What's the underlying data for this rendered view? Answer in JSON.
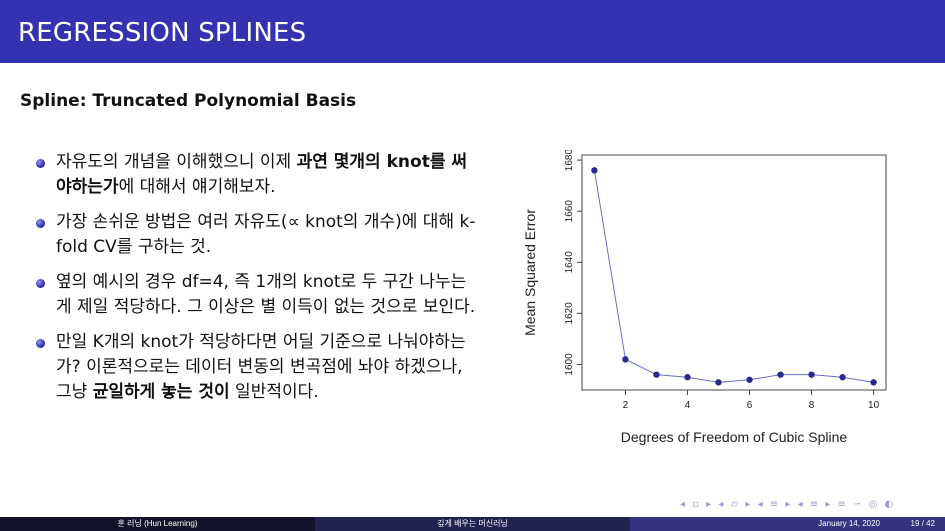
{
  "header": {
    "title": "REGRESSION SPLINES"
  },
  "subtitle": "Spline: Truncated Polynomial Basis",
  "bullets": [
    {
      "pre": "자유도의 개념을 이해했으니 이제 ",
      "bold": "과연 몇개의 knot를 써야하는가",
      "post": "에 대해서 얘기해보자."
    },
    {
      "pre": "가장 손쉬운 방법은 여러 자유도(∝ knot의 개수)에 대해 k-fold CV를 구하는 것.",
      "bold": "",
      "post": ""
    },
    {
      "pre": "옆의 예시의 경우 df=4, 즉 1개의 knot로 두 구간 나누는게 제일 적당하다. 그 이상은 별 이득이 없는 것으로 보인다.",
      "bold": "",
      "post": ""
    },
    {
      "pre": "만일 K개의 knot가 적당하다면 어딜 기준으로 나눠야하는가? 이론적으로는 데이터 변동의 변곡점에 놔야 하겠으나, 그냥 ",
      "bold": "균일하게 놓는 것이",
      "post": " 일반적이다."
    }
  ],
  "chart_data": {
    "type": "line",
    "xlabel": "Degrees of Freedom of Cubic Spline",
    "ylabel": "Mean Squared Error",
    "x": [
      1,
      2,
      3,
      4,
      5,
      6,
      7,
      8,
      9,
      10
    ],
    "y": [
      1676,
      1602,
      1596,
      1595,
      1593,
      1594,
      1596,
      1596,
      1595,
      1593
    ],
    "xlim": [
      0.6,
      10.4
    ],
    "ylim": [
      1590,
      1682
    ],
    "xticks": [
      2,
      4,
      6,
      8,
      10
    ],
    "yticks": [
      1600,
      1620,
      1640,
      1660,
      1680
    ],
    "line_color": "#6b6bc8",
    "point_color": "#2a2a8a",
    "grid": false
  },
  "footer": {
    "author": "훈 러닝 (Hun Learning)",
    "center": "깊게 배우는 머신러닝",
    "date": "January 14, 2020",
    "page": "19 / 42"
  },
  "nav_symbols": "◂ ▫ ▸ ◂ ▱ ▸ ◂ ≡ ▸ ◂ ≡ ▸ ≡ ∽ ◎ ◐"
}
